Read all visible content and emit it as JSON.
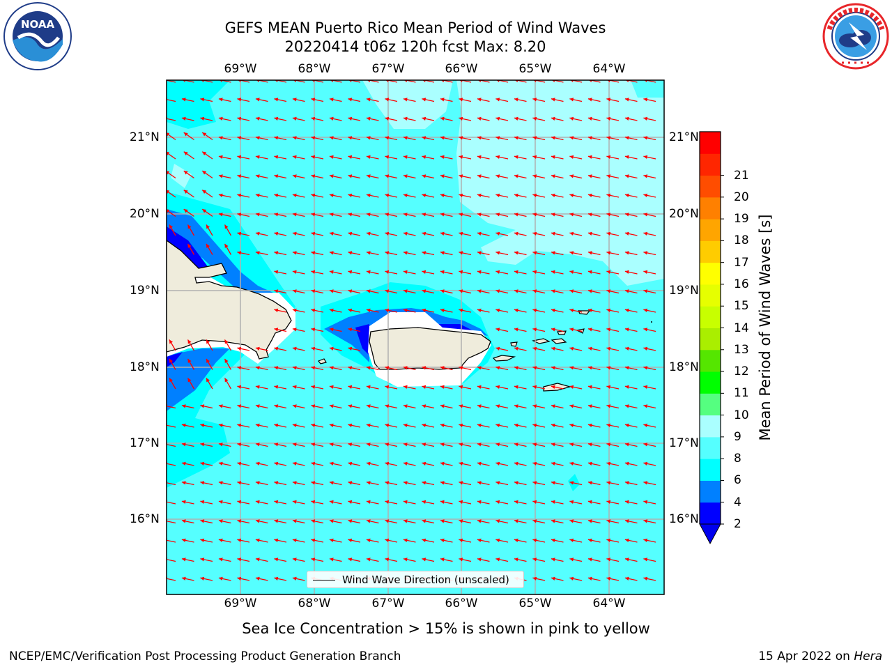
{
  "header": {
    "title_line1": "GEFS MEAN Puerto Rico Mean Period of Wind Waves",
    "title_line2": "20220414 t06z 120h fcst   Max: 8.20"
  },
  "logos": {
    "left": {
      "icon": "noaa-logo-icon",
      "text": "NOAA",
      "ring_text": "NATIONAL OCEANIC AND ATMOSPHERIC ADMINISTRATION · U.S. DEPARTMENT OF COMMERCE"
    },
    "right": {
      "icon": "nws-logo-icon",
      "ring_text": "NATIONAL WEATHER SERVICE"
    }
  },
  "map": {
    "lon_labels": [
      "69°W",
      "68°W",
      "67°W",
      "66°W",
      "65°W",
      "64°W"
    ],
    "lat_labels": [
      "21°N",
      "20°N",
      "19°N",
      "18°N",
      "17°N",
      "16°N"
    ],
    "arrow_color": "#ff0000",
    "land_color": "#efecdc",
    "grid_color": "#b0b0b0",
    "legend_label": "Wind Wave Direction (unscaled)"
  },
  "colorbar": {
    "title": "Mean Period of Wind Waves [s]",
    "ticks": [
      "2",
      "4",
      "6",
      "8",
      "9",
      "10",
      "11",
      "12",
      "13",
      "14",
      "15",
      "16",
      "17",
      "18",
      "19",
      "20",
      "21"
    ],
    "colors": [
      "#0000ff",
      "#0080ff",
      "#00ffff",
      "#55ffff",
      "#aaffff",
      "#55ff80",
      "#00ff00",
      "#55e600",
      "#aaee00",
      "#c8ff00",
      "#e6ff00",
      "#ffff00",
      "#ffcc00",
      "#ffa500",
      "#ff8000",
      "#ff4d00",
      "#ff2600",
      "#ff0000"
    ],
    "under_color": "#0000ee"
  },
  "notes": {
    "sea_ice": "Sea Ice Concentration > 15% is shown in pink to yellow",
    "footer_left": "NCEP/EMC/Verification Post Processing Product Generation Branch",
    "footer_date": "15 Apr 2022 on ",
    "footer_host": "Hera"
  }
}
